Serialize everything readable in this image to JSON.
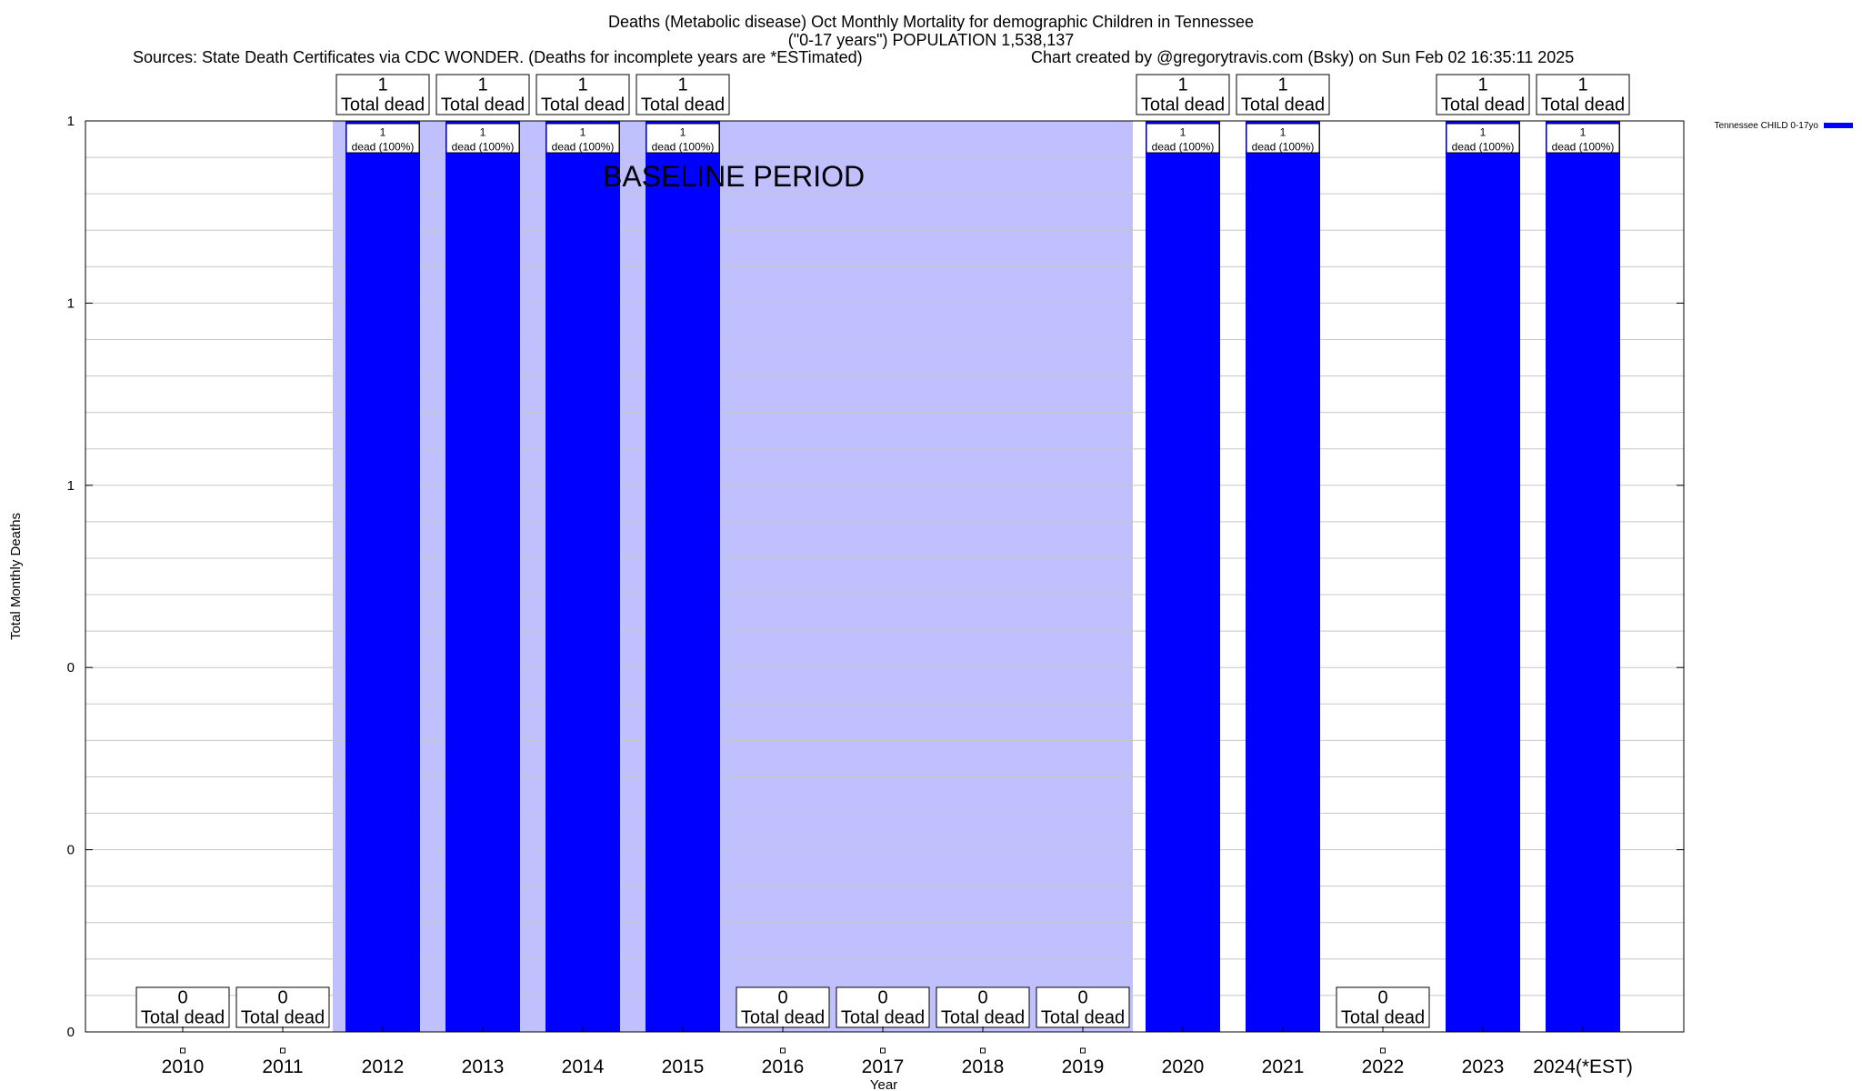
{
  "chart_data": {
    "type": "bar",
    "title_line1": "Deaths (Metabolic disease) Oct Monthly Mortality for demographic Children in Tennessee",
    "title_line2": "(\"0-17 years\") POPULATION 1,538,137",
    "sources": "Sources: State Death Certificates via CDC WONDER. (Deaths for incomplete years are *ESTimated)",
    "credit": "Chart created by @gregorytravis.com (Bsky) on Sun Feb 02 16:35:11 2025",
    "xlabel": "Year",
    "ylabel": "Total Monthly Deaths",
    "categories": [
      "2010",
      "2011",
      "2012",
      "2013",
      "2014",
      "2015",
      "2016",
      "2017",
      "2018",
      "2019",
      "2020",
      "2021",
      "2022",
      "2023",
      "2024(*EST)"
    ],
    "series": [
      {
        "name": "Tennessee CHILD 0-17yo",
        "color": "#0000ff",
        "values": [
          0,
          0,
          1,
          1,
          1,
          1,
          0,
          0,
          0,
          0,
          1,
          1,
          0,
          1,
          1
        ]
      }
    ],
    "top_labels": [
      "0\nTotal dead",
      "0\nTotal dead",
      "1\nTotal dead",
      "1\nTotal dead",
      "1\nTotal dead",
      "1\nTotal dead",
      "0\nTotal dead",
      "0\nTotal dead",
      "0\nTotal dead",
      "0\nTotal dead",
      "1\nTotal dead",
      "1\nTotal dead",
      "0\nTotal dead",
      "1\nTotal dead",
      "1\nTotal dead"
    ],
    "inner_labels": [
      "",
      "",
      "1\ndead (100%)",
      "1\ndead (100%)",
      "1\ndead (100%)",
      "1\ndead (100%)",
      "",
      "",
      "",
      "",
      "1\ndead (100%)",
      "1\ndead (100%)",
      "",
      "1\ndead (100%)",
      "1\ndead (100%)"
    ],
    "ylim": [
      0,
      1
    ],
    "ytick_labels": [
      "0",
      "0",
      "0",
      "1",
      "1",
      "1"
    ],
    "baseline_period": {
      "label": "BASELINE PERIOD",
      "from": "2012",
      "to": "2019",
      "color": "#c0c0ff"
    },
    "grid": true,
    "legend_position": "top-right"
  }
}
